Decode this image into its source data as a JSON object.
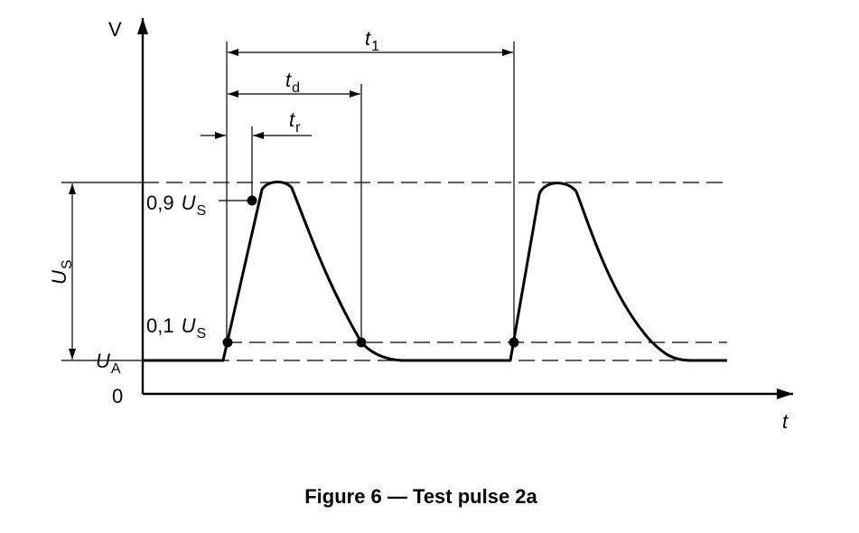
{
  "axes": {
    "y_label": "V",
    "x_label": "t",
    "origin_label": "0"
  },
  "levels": {
    "ua_letter": "U",
    "ua_sub": "A",
    "us_letter": "U",
    "us_sub": "S",
    "l09_prefix": "0,9",
    "l09_letter": "U",
    "l09_sub": "S",
    "l01_prefix": "0,1",
    "l01_letter": "U",
    "l01_sub": "S"
  },
  "intervals": {
    "t1_letter": "t",
    "t1_sub": "1",
    "td_letter": "t",
    "td_sub": "d",
    "tr_letter": "t",
    "tr_sub": "r"
  },
  "caption": "Figure 6 — Test pulse 2a"
}
